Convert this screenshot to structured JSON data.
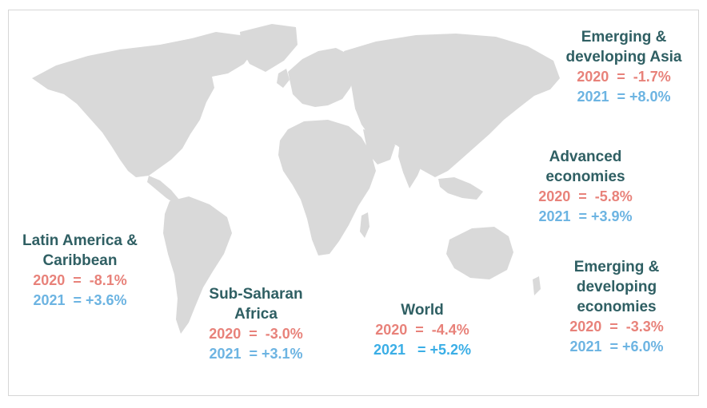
{
  "map": {
    "land_color": "#d9d9d9",
    "name_color": "#2f5f63",
    "value_2020_color": "#e8827a",
    "value_2021_color": "#6cb4e2",
    "regions": {
      "asia": {
        "name": "Emerging & developing Asia",
        "v2020": "2020  =  -1.7%",
        "v2021": "2021  = +8.0%"
      },
      "advanced": {
        "name": "Advanced economies",
        "v2020": "2020  =  -5.8%",
        "v2021": "2021  = +3.9%"
      },
      "latam": {
        "name": "Latin America & Caribbean",
        "v2020": "2020  =  -8.1%",
        "v2021": "2021  = +3.6%"
      },
      "ssa": {
        "name": "Sub-Saharan Africa",
        "v2020": "2020  =  -3.0%",
        "v2021": "2021  = +3.1%"
      },
      "world": {
        "name": "World",
        "v2020": "2020  =  -4.4%",
        "v2021": "2021   = +5.2%"
      },
      "emerging": {
        "name": "Emerging & developing economies",
        "v2020": "2020  =  -3.3%",
        "v2021": "2021  = +6.0%"
      }
    }
  }
}
